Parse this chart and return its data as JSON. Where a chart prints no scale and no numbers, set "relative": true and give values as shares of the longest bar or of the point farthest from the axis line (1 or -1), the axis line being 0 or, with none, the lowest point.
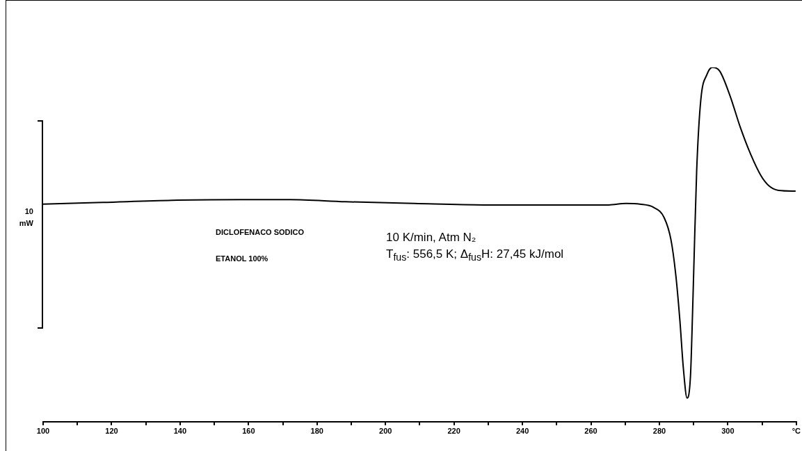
{
  "chart_data": {
    "type": "line",
    "relative": true,
    "color": "#000000",
    "marker": "none",
    "line_style": "solid",
    "grid": false,
    "legend": false,
    "ylabel": "10 mW",
    "xlim": [
      100,
      320
    ],
    "xticks": [
      100,
      {
        "value": 110,
        "label": null
      },
      120,
      {
        "value": 130,
        "label": null
      },
      140,
      {
        "value": 150,
        "label": null
      },
      160,
      {
        "value": 170,
        "label": null
      },
      180,
      {
        "value": 190,
        "label": null
      },
      200,
      {
        "value": 210,
        "label": null
      },
      220,
      {
        "value": 230,
        "label": null
      },
      240,
      {
        "value": 250,
        "label": null
      },
      260,
      {
        "value": 270,
        "label": null
      },
      280,
      {
        "value": 290,
        "label": null
      },
      300,
      {
        "value": 310,
        "label": null
      },
      {
        "value": 320,
        "label": "°C"
      }
    ],
    "x": [
      100,
      117.4,
      137.7,
      157.9,
      172.1,
      188.3,
      208.5,
      228.7,
      249,
      265.2,
      270.2,
      274.3,
      278.3,
      281.4,
      283.4,
      284.8,
      286,
      287,
      288.1,
      289.1,
      289.7,
      290.1,
      290.9,
      292.1,
      293.9,
      295.5,
      297.6,
      300.6,
      303.6,
      306.7,
      309.7,
      312.1,
      314.8,
      319.8
    ],
    "values": [
      0.614,
      0.619,
      0.625,
      0.627,
      0.627,
      0.621,
      0.616,
      0.612,
      0.612,
      0.612,
      0.616,
      0.614,
      0.605,
      0.576,
      0.513,
      0.414,
      0.285,
      0.152,
      0.067,
      0.132,
      0.31,
      0.448,
      0.71,
      0.908,
      0.98,
      1,
      0.99,
      0.921,
      0.832,
      0.754,
      0.694,
      0.665,
      0.653,
      0.651
    ],
    "annotations": [
      "DICLOFENACO SODICO",
      "ETANOL 100%",
      "10 K/min, Atm N₂",
      "T$_{fus}$: 556,5 K;  Δ$_{fus}$H: 27,45 kJ/mol"
    ]
  }
}
